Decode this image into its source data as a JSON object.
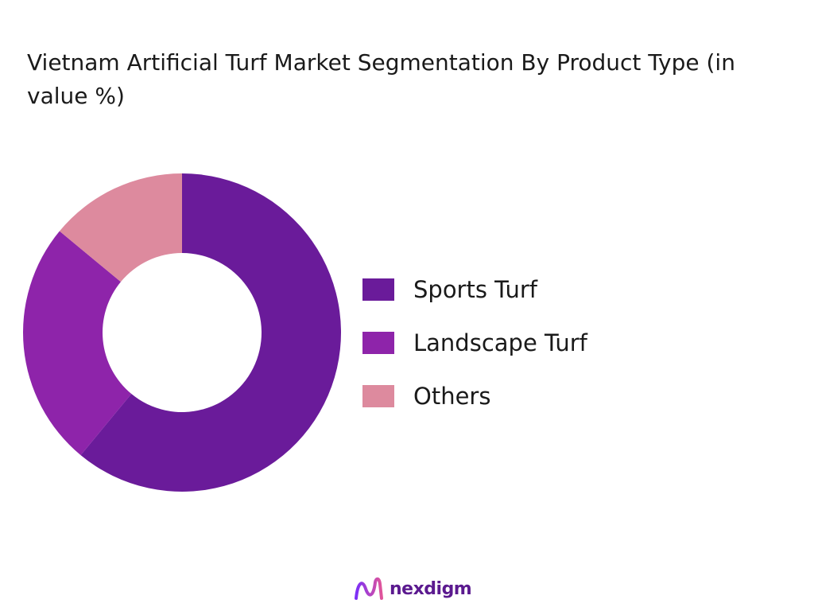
{
  "chart_data": {
    "type": "pie",
    "title": "Vietnam Artificial Turf Market Segmentation By Product Type (in value %)",
    "categories": [
      "Sports Turf",
      "Landscape Turf",
      "Others"
    ],
    "values": [
      61,
      25,
      14
    ],
    "colors": [
      "#6a1b9a",
      "#8e24aa",
      "#dd8a9e"
    ],
    "donut": true,
    "legend_position": "right"
  },
  "logo": {
    "text": "nexdigm"
  }
}
